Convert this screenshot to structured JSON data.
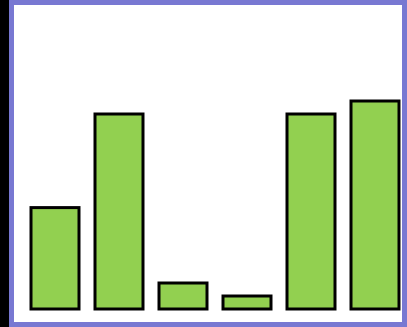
{
  "chart_data": {
    "type": "bar",
    "categories": [
      "",
      "",
      "",
      "",
      "",
      ""
    ],
    "values": [
      39,
      75,
      10,
      5,
      75,
      80
    ],
    "ylim": [
      0,
      100
    ],
    "title": "",
    "xlabel": "",
    "ylabel": "",
    "grid": false,
    "legend": "none",
    "colors": {
      "bar_fill": "#92d050",
      "bar_stroke": "#000000",
      "frame_border": "#7878d2",
      "background": "#ffffff",
      "outer_background": "#000000"
    }
  }
}
